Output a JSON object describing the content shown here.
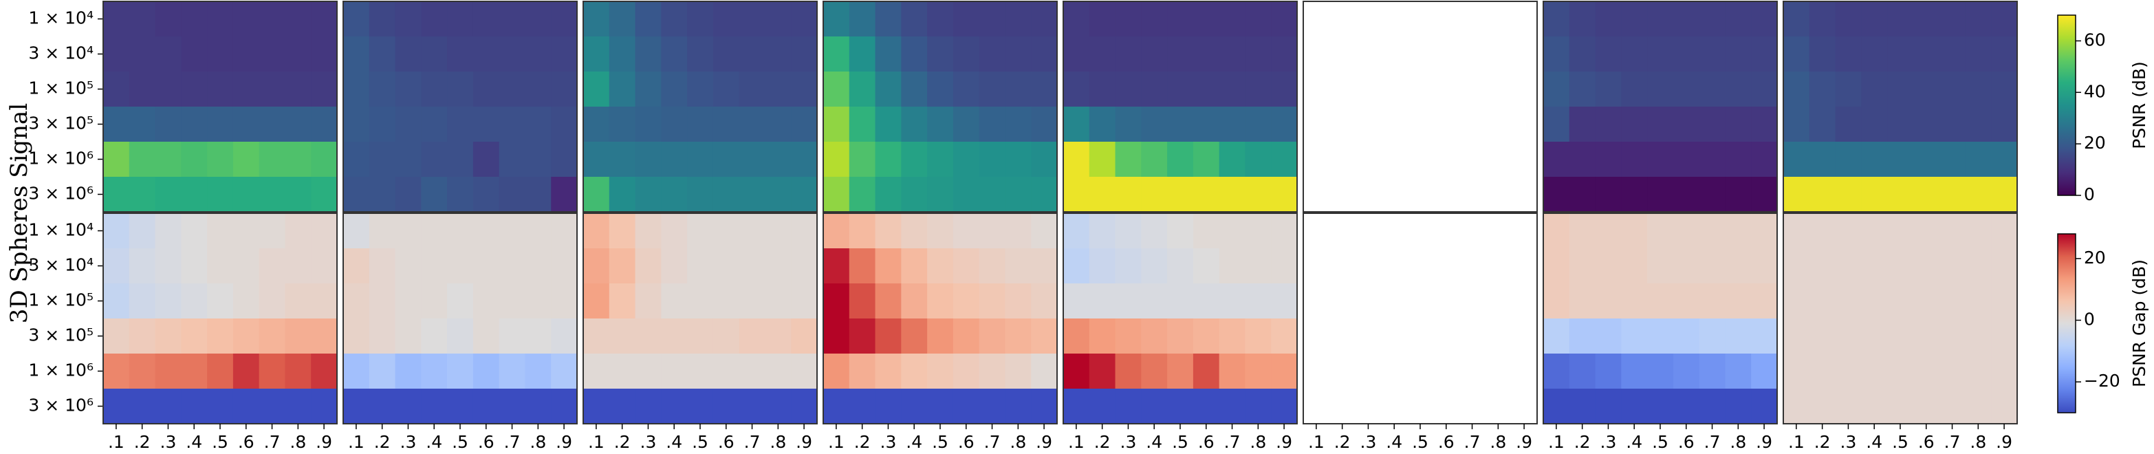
{
  "chart_data": {
    "type": "heatmap",
    "ylabel": "3D Spheres Signal",
    "rows": [
      "1 × 10⁴",
      "3 × 10⁴",
      "1 × 10⁵",
      "3 × 10⁵",
      "1 × 10⁶",
      "3 × 10⁶"
    ],
    "categories": [
      ".1",
      ".2",
      ".3",
      ".4",
      ".5",
      ".6",
      ".7",
      ".8",
      ".9"
    ],
    "psnr_colorbar": {
      "label": "PSNR (dB)",
      "lim": [
        0,
        70
      ],
      "ticks": [
        0,
        20,
        40,
        60
      ]
    },
    "gap_colorbar": {
      "label": "PSNR Gap (dB)",
      "lim": [
        -30,
        28
      ],
      "ticks": [
        {
          "value": -20,
          "label": "−20"
        },
        0,
        20
      ]
    },
    "panels": [
      {
        "psnr": [
          [
            12,
            12,
            11,
            11,
            11,
            11,
            11,
            11,
            11
          ],
          [
            12,
            12,
            12,
            11,
            11,
            11,
            11,
            11,
            11
          ],
          [
            13,
            12,
            12,
            12,
            12,
            12,
            12,
            12,
            12
          ],
          [
            22,
            22,
            21,
            21,
            21,
            21,
            21,
            21,
            21
          ],
          [
            55,
            50,
            50,
            49,
            50,
            52,
            50,
            50,
            49
          ],
          [
            44,
            44,
            43,
            43,
            43,
            43,
            43,
            43,
            44
          ]
        ],
        "gap": [
          [
            -6,
            -4,
            -2,
            -1,
            0,
            0,
            0,
            1,
            1
          ],
          [
            -5,
            -3,
            -2,
            -1,
            0,
            0,
            1,
            1,
            1
          ],
          [
            -6,
            -4,
            -3,
            -2,
            -1,
            0,
            1,
            2,
            2
          ],
          [
            3,
            4,
            5,
            6,
            7,
            8,
            9,
            10,
            10
          ],
          [
            16,
            17,
            18,
            18,
            20,
            24,
            21,
            22,
            24
          ],
          [
            -30,
            -30,
            -30,
            -30,
            -30,
            -30,
            -30,
            -30,
            -30
          ]
        ]
      },
      {
        "psnr": [
          [
            18,
            15,
            14,
            13,
            13,
            13,
            13,
            13,
            13
          ],
          [
            20,
            17,
            15,
            15,
            14,
            14,
            14,
            14,
            14
          ],
          [
            20,
            18,
            17,
            16,
            16,
            15,
            15,
            15,
            15
          ],
          [
            20,
            19,
            18,
            18,
            17,
            17,
            17,
            17,
            16
          ],
          [
            19,
            18,
            18,
            17,
            17,
            13,
            17,
            17,
            16
          ],
          [
            18,
            18,
            17,
            20,
            18,
            17,
            16,
            16,
            8
          ]
        ],
        "gap": [
          [
            -2,
            0,
            0,
            0,
            0,
            0,
            0,
            0,
            0
          ],
          [
            3,
            1,
            0,
            0,
            0,
            0,
            0,
            0,
            0
          ],
          [
            2,
            1,
            0,
            0,
            -1,
            0,
            0,
            0,
            0
          ],
          [
            2,
            1,
            0,
            -1,
            -2,
            0,
            -1,
            -1,
            -2
          ],
          [
            -12,
            -10,
            -13,
            -12,
            -11,
            -13,
            -11,
            -12,
            -10
          ],
          [
            -30,
            -30,
            -30,
            -30,
            -30,
            -30,
            -30,
            -30,
            -30
          ]
        ]
      },
      {
        "psnr": [
          [
            28,
            24,
            19,
            16,
            15,
            14,
            14,
            14,
            14
          ],
          [
            32,
            26,
            21,
            18,
            16,
            15,
            15,
            15,
            15
          ],
          [
            38,
            28,
            23,
            20,
            18,
            17,
            16,
            16,
            16
          ],
          [
            24,
            23,
            22,
            21,
            21,
            21,
            21,
            21,
            21
          ],
          [
            28,
            28,
            27,
            27,
            27,
            27,
            27,
            27,
            27
          ],
          [
            48,
            34,
            32,
            32,
            31,
            31,
            31,
            31,
            31
          ]
        ],
        "gap": [
          [
            9,
            6,
            2,
            1,
            0,
            0,
            0,
            0,
            0
          ],
          [
            11,
            8,
            3,
            1,
            0,
            0,
            0,
            0,
            0
          ],
          [
            12,
            6,
            2,
            0,
            0,
            0,
            0,
            0,
            0
          ],
          [
            3,
            3,
            3,
            3,
            3,
            3,
            4,
            4,
            5
          ],
          [
            0,
            0,
            0,
            0,
            0,
            0,
            0,
            0,
            0
          ],
          [
            -30,
            -30,
            -30,
            -30,
            -30,
            -30,
            -30,
            -30,
            -30
          ]
        ]
      },
      {
        "psnr": [
          [
            30,
            26,
            20,
            16,
            14,
            13,
            13,
            13,
            13
          ],
          [
            45,
            35,
            25,
            19,
            16,
            15,
            14,
            14,
            14
          ],
          [
            52,
            40,
            30,
            23,
            19,
            17,
            16,
            16,
            16
          ],
          [
            58,
            45,
            36,
            30,
            27,
            24,
            22,
            22,
            21
          ],
          [
            62,
            50,
            45,
            40,
            38,
            36,
            35,
            35,
            34
          ],
          [
            58,
            46,
            40,
            38,
            37,
            36,
            36,
            36,
            36
          ]
        ],
        "gap": [
          [
            10,
            8,
            5,
            3,
            2,
            1,
            1,
            1,
            0
          ],
          [
            26,
            18,
            12,
            8,
            5,
            4,
            3,
            2,
            2
          ],
          [
            28,
            22,
            16,
            10,
            7,
            6,
            5,
            4,
            3
          ],
          [
            30,
            26,
            22,
            18,
            14,
            12,
            10,
            9,
            8
          ],
          [
            14,
            10,
            8,
            6,
            5,
            4,
            3,
            2,
            0
          ],
          [
            -30,
            -30,
            -30,
            -30,
            -30,
            -30,
            -30,
            -30,
            -30
          ]
        ]
      },
      {
        "psnr": [
          [
            12,
            11,
            11,
            11,
            11,
            11,
            11,
            11,
            11
          ],
          [
            12,
            12,
            12,
            12,
            12,
            12,
            12,
            12,
            12
          ],
          [
            14,
            13,
            13,
            13,
            13,
            13,
            13,
            13,
            13
          ],
          [
            32,
            26,
            24,
            23,
            23,
            23,
            23,
            23,
            23
          ],
          [
            68,
            62,
            52,
            50,
            46,
            48,
            40,
            38,
            38
          ],
          [
            68,
            68,
            68,
            68,
            68,
            68,
            68,
            68,
            68
          ]
        ],
        "gap": [
          [
            -6,
            -4,
            -3,
            -2,
            -1,
            0,
            0,
            0,
            0
          ],
          [
            -7,
            -5,
            -4,
            -3,
            -2,
            -1,
            0,
            0,
            0
          ],
          [
            -2,
            -2,
            -2,
            -2,
            -2,
            -2,
            -2,
            -2,
            -2
          ],
          [
            15,
            13,
            12,
            11,
            10,
            9,
            8,
            7,
            6
          ],
          [
            30,
            26,
            20,
            18,
            16,
            22,
            14,
            13,
            13
          ],
          [
            -30,
            -30,
            -30,
            -30,
            -30,
            -30,
            -30,
            -30,
            -30
          ]
        ]
      },
      {
        "psnr": [
          [
            null,
            null,
            null,
            null,
            null,
            null,
            null,
            null,
            null
          ],
          [
            null,
            null,
            null,
            null,
            null,
            null,
            null,
            null,
            null
          ],
          [
            null,
            null,
            null,
            null,
            null,
            null,
            null,
            null,
            null
          ],
          [
            null,
            null,
            null,
            null,
            null,
            null,
            null,
            null,
            null
          ],
          [
            null,
            null,
            null,
            null,
            null,
            null,
            null,
            null,
            null
          ],
          [
            null,
            null,
            null,
            null,
            null,
            null,
            null,
            null,
            null
          ]
        ],
        "gap": [
          [
            null,
            null,
            null,
            null,
            null,
            null,
            null,
            null,
            null
          ],
          [
            null,
            null,
            null,
            null,
            null,
            null,
            null,
            null,
            null
          ],
          [
            null,
            null,
            null,
            null,
            null,
            null,
            null,
            null,
            null
          ],
          [
            null,
            null,
            null,
            null,
            null,
            null,
            null,
            null,
            null
          ],
          [
            null,
            null,
            null,
            null,
            null,
            null,
            null,
            null,
            null
          ],
          [
            null,
            null,
            null,
            null,
            null,
            null,
            null,
            null,
            null
          ]
        ]
      },
      {
        "psnr": [
          [
            16,
            14,
            13,
            13,
            13,
            13,
            13,
            13,
            13
          ],
          [
            18,
            15,
            14,
            14,
            14,
            14,
            14,
            14,
            14
          ],
          [
            20,
            17,
            16,
            15,
            15,
            15,
            15,
            15,
            15
          ],
          [
            18,
            11,
            11,
            11,
            11,
            11,
            11,
            11,
            11
          ],
          [
            8,
            8,
            8,
            8,
            8,
            8,
            8,
            8,
            8
          ],
          [
            2,
            2,
            2,
            2,
            2,
            2,
            2,
            2,
            2
          ]
        ],
        "gap": [
          [
            4,
            3,
            3,
            3,
            2,
            2,
            2,
            2,
            2
          ],
          [
            4,
            3,
            3,
            3,
            2,
            2,
            2,
            2,
            2
          ],
          [
            4,
            3,
            3,
            3,
            3,
            3,
            3,
            3,
            3
          ],
          [
            -8,
            -10,
            -10,
            -9,
            -9,
            -9,
            -8,
            -8,
            -8
          ],
          [
            -26,
            -25,
            -24,
            -22,
            -22,
            -21,
            -20,
            -19,
            -17
          ],
          [
            -30,
            -30,
            -30,
            -30,
            -30,
            -30,
            -30,
            -30,
            -30
          ]
        ]
      },
      {
        "psnr": [
          [
            16,
            14,
            13,
            13,
            13,
            13,
            13,
            13,
            13
          ],
          [
            18,
            15,
            14,
            14,
            14,
            14,
            14,
            14,
            14
          ],
          [
            20,
            17,
            16,
            15,
            15,
            15,
            15,
            15,
            15
          ],
          [
            20,
            17,
            15,
            15,
            15,
            15,
            15,
            15,
            15
          ],
          [
            26,
            26,
            26,
            26,
            26,
            26,
            26,
            26,
            26
          ],
          [
            68,
            68,
            68,
            68,
            68,
            68,
            68,
            68,
            68
          ]
        ],
        "gap": [
          [
            1,
            1,
            1,
            1,
            1,
            1,
            1,
            1,
            1
          ],
          [
            1,
            1,
            1,
            1,
            1,
            1,
            1,
            1,
            1
          ],
          [
            1,
            1,
            1,
            1,
            1,
            1,
            1,
            1,
            1
          ],
          [
            1,
            1,
            1,
            1,
            1,
            1,
            1,
            1,
            1
          ],
          [
            1,
            1,
            1,
            1,
            1,
            1,
            1,
            1,
            1
          ],
          [
            1,
            1,
            1,
            1,
            1,
            1,
            1,
            1,
            1
          ]
        ]
      }
    ]
  }
}
